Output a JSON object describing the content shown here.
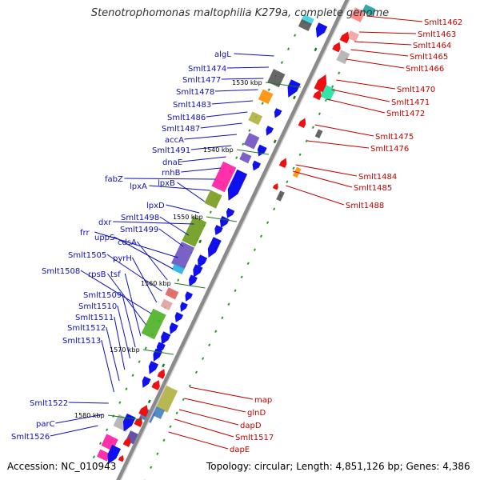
{
  "title": "Stenotrophomonas maltophilia K279a, complete genome",
  "footer": {
    "accession": "Accession: NC_010943",
    "topology": "Topology: circular; Length: 4,851,126 bp; Genes: 4,386"
  },
  "colors": {
    "backbone": "#8a8a8a",
    "forward_arrow": "#1010ee",
    "reverse_arrow": "#ee1010",
    "label_forward": "#1010b8",
    "label_reverse": "#c00000",
    "feature_dots": "#2a9a2a"
  },
  "ruler_labels": [
    "1530 kbp",
    "1540 kbp",
    "1550 kbp",
    "1560 kbp",
    "1570 kbp",
    "1580 kbp"
  ],
  "labels_left": [
    "algL",
    "Smlt1474",
    "Smlt1477",
    "Smlt1478",
    "Smlt1483",
    "Smlt1486",
    "Smlt1487",
    "accA",
    "Smlt1491",
    "dnaE",
    "rnhB",
    "fabZ",
    "lpxA",
    "lpxB",
    "lpxD",
    "dxr",
    "Smlt1498",
    "Smlt1499",
    "frr",
    "uppS",
    "cdsA",
    "Smlt1505",
    "pyrH",
    "Smlt1508",
    "rpsB",
    "tsf",
    "Smlt1509",
    "Smlt1510",
    "Smlt1511",
    "Smlt1512",
    "Smlt1513",
    "Smlt1522",
    "parC",
    "Smlt1526"
  ],
  "labels_right": [
    "Smlt1462",
    "Smlt1463",
    "Smlt1464",
    "Smlt1465",
    "Smlt1466",
    "Smlt1470",
    "Smlt1471",
    "Smlt1472",
    "Smlt1475",
    "Smlt1476",
    "Smlt1484",
    "Smlt1485",
    "Smlt1488",
    "map",
    "glnD",
    "dapD",
    "Smlt1517",
    "dapE"
  ]
}
